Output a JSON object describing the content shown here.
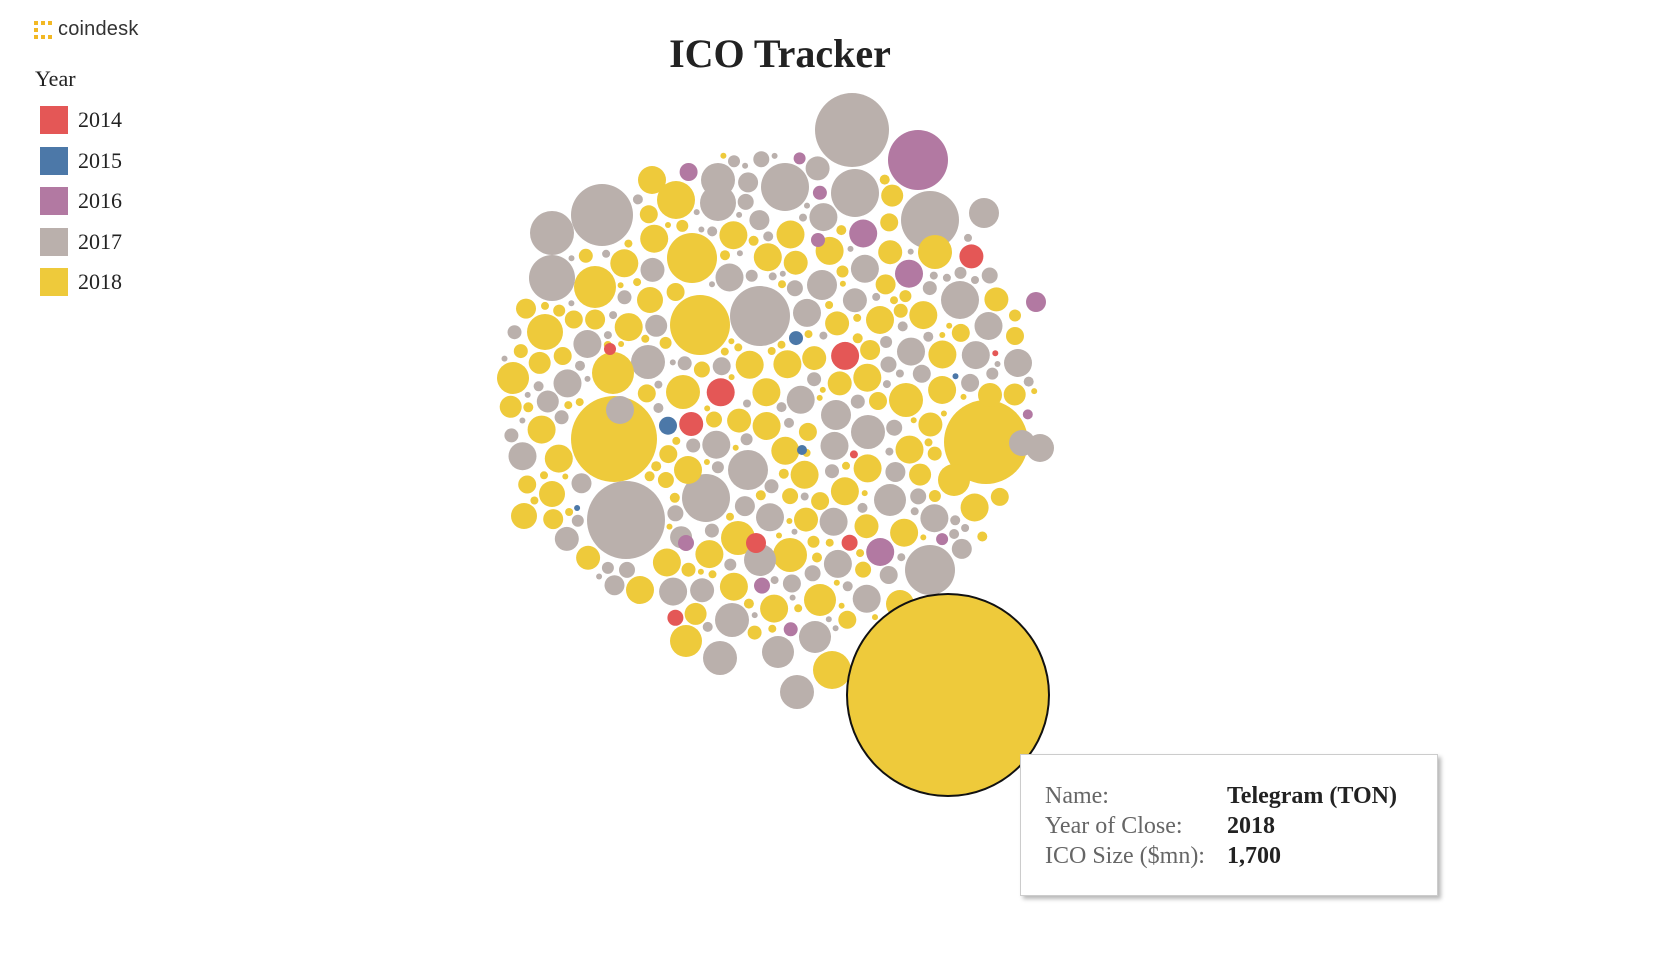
{
  "brand": {
    "name": "coindesk"
  },
  "colors": {
    "2014": "#e45756",
    "2015": "#4c78a8",
    "2016": "#b279a2",
    "2017": "#bab0ac",
    "2018": "#eeca3b"
  },
  "legend": {
    "title": "Year",
    "items": [
      {
        "label": "2014",
        "color": "#e45756"
      },
      {
        "label": "2015",
        "color": "#4c78a8"
      },
      {
        "label": "2016",
        "color": "#b279a2"
      },
      {
        "label": "2017",
        "color": "#bab0ac"
      },
      {
        "label": "2018",
        "color": "#eeca3b"
      }
    ]
  },
  "tooltip": {
    "name_label": "Name:",
    "name_value": "Telegram (TON)",
    "year_label": "Year of Close:",
    "year_value": "2018",
    "size_label": "ICO Size ($mn):",
    "size_value": "1,700"
  },
  "chart_data": {
    "type": "bubble",
    "title": "ICO Tracker",
    "size_unit": "$mn",
    "size_metric": "ICO Size ($mn)",
    "color_by": "Year",
    "highlighted": {
      "name": "Telegram (TON)",
      "year": 2018,
      "value": 1700
    },
    "series": [
      {
        "name": "2014",
        "color": "#e45756"
      },
      {
        "name": "2015",
        "color": "#4c78a8"
      },
      {
        "name": "2016",
        "color": "#b279a2"
      },
      {
        "name": "2017",
        "color": "#bab0ac"
      },
      {
        "name": "2018",
        "color": "#eeca3b"
      }
    ]
  }
}
